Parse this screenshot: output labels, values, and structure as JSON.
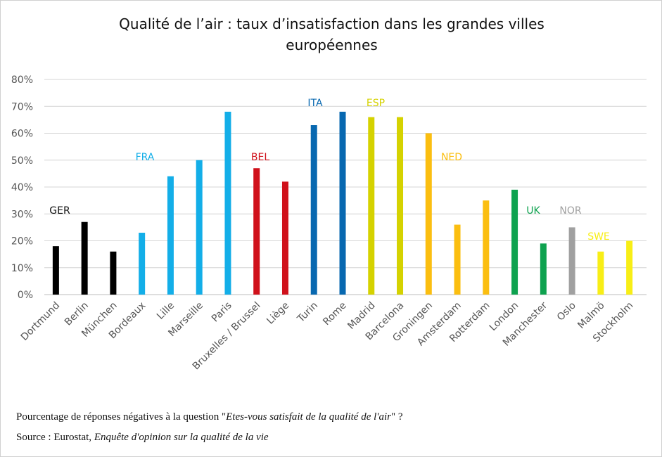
{
  "chart_data": {
    "type": "bar",
    "title": [
      "Qualité de l’air : taux d’insatisfaction dans les grandes villes",
      "européennes"
    ],
    "ylim": [
      0,
      80
    ],
    "yticks": [
      "0%",
      "10%",
      "20%",
      "30%",
      "40%",
      "50%",
      "60%",
      "70%",
      "80%"
    ],
    "grid": true,
    "groups": [
      {
        "label": "GER",
        "color": "#000000",
        "cities": [
          "Dortmund",
          "Berlin",
          "München"
        ],
        "values": [
          18,
          27,
          16
        ]
      },
      {
        "label": "FRA",
        "color": "#13aee8",
        "cities": [
          "Bordeaux",
          "Lille",
          "Marseille",
          "Paris"
        ],
        "values": [
          23,
          44,
          50,
          68
        ]
      },
      {
        "label": "BEL",
        "color": "#d0111b",
        "cities": [
          "Bruxelles / Brussel",
          "Liège"
        ],
        "values": [
          47,
          42
        ]
      },
      {
        "label": "ITA",
        "color": "#0868b0",
        "cities": [
          "Turin",
          "Rome"
        ],
        "values": [
          63,
          68
        ]
      },
      {
        "label": "ESP",
        "color": "#d5d200",
        "cities": [
          "Madrid",
          "Barcelona"
        ],
        "values": [
          66,
          66
        ]
      },
      {
        "label": "NED",
        "color": "#fbbe10",
        "cities": [
          "Groningen",
          "Amsterdam",
          "Rotterdam"
        ],
        "values": [
          60,
          26,
          35
        ]
      },
      {
        "label": "UK",
        "color": "#0ea24f",
        "cities": [
          "London",
          "Manchester"
        ],
        "values": [
          39,
          19
        ]
      },
      {
        "label": "NOR",
        "color": "#a0a0a0",
        "cities": [
          "Oslo"
        ],
        "values": [
          25
        ]
      },
      {
        "label": "SWE",
        "color": "#f8ee16",
        "cities": [
          "Malmö",
          "Stockholm"
        ],
        "values": [
          16,
          20
        ]
      }
    ]
  },
  "notes": {
    "line1_prefix": "Pourcentage de réponses négatives à la question \"",
    "line1_italic": "Etes-vous satisfait de la qualité de l'air",
    "line1_suffix": "\" ?",
    "line2_prefix": "Source : Eurostat, ",
    "line2_italic": "Enquête d'opinion sur la qualité de la vie"
  }
}
